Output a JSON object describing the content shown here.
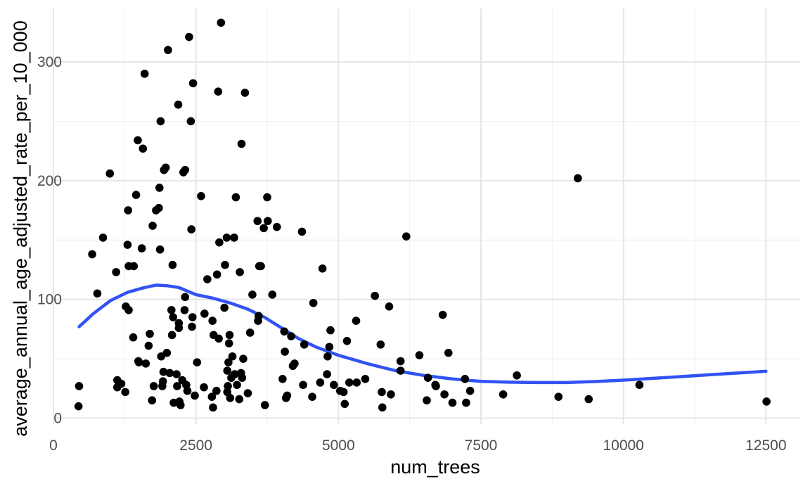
{
  "chart_data": {
    "type": "scatter",
    "title": "",
    "xlabel": "num_trees",
    "ylabel": "average_annual_age_adjusted_rate_per_10_000",
    "xlim": [
      0,
      13100
    ],
    "ylim": [
      -5,
      345
    ],
    "x_ticks": [
      0,
      2500,
      5000,
      7500,
      10000,
      12500
    ],
    "x_tick_labels": [
      "0",
      "2500",
      "5000",
      "7500",
      "10000",
      "12500"
    ],
    "y_ticks": [
      0,
      100,
      200,
      300
    ],
    "y_tick_labels": [
      "0",
      "100",
      "200",
      "300"
    ],
    "grid": true,
    "legend": "none",
    "point_color": "#000000",
    "smooth_color": "#3153f4",
    "points": [
      [
        450,
        27
      ],
      [
        440,
        10
      ],
      [
        680,
        138
      ],
      [
        770,
        105
      ],
      [
        870,
        152
      ],
      [
        990,
        206
      ],
      [
        1100,
        123
      ],
      [
        1120,
        32
      ],
      [
        1120,
        26
      ],
      [
        1190,
        29
      ],
      [
        1260,
        22
      ],
      [
        1270,
        94
      ],
      [
        1300,
        146
      ],
      [
        1310,
        175
      ],
      [
        1320,
        91
      ],
      [
        1320,
        128
      ],
      [
        1400,
        68
      ],
      [
        1410,
        128
      ],
      [
        1450,
        188
      ],
      [
        1480,
        234
      ],
      [
        1490,
        48
      ],
      [
        1500,
        47
      ],
      [
        1550,
        143
      ],
      [
        1570,
        227
      ],
      [
        1600,
        290
      ],
      [
        1620,
        46
      ],
      [
        1670,
        61
      ],
      [
        1690,
        71
      ],
      [
        1730,
        15
      ],
      [
        1740,
        162
      ],
      [
        1760,
        27
      ],
      [
        1800,
        175
      ],
      [
        1850,
        177
      ],
      [
        1860,
        194
      ],
      [
        1870,
        142
      ],
      [
        1880,
        250
      ],
      [
        1890,
        52
      ],
      [
        1910,
        27
      ],
      [
        1920,
        31
      ],
      [
        1930,
        39
      ],
      [
        1940,
        209
      ],
      [
        1970,
        211
      ],
      [
        1990,
        55
      ],
      [
        2010,
        310
      ],
      [
        2040,
        38
      ],
      [
        2070,
        91
      ],
      [
        2080,
        70
      ],
      [
        2090,
        129
      ],
      [
        2100,
        85
      ],
      [
        2110,
        13
      ],
      [
        2160,
        37
      ],
      [
        2170,
        27
      ],
      [
        2190,
        264
      ],
      [
        2200,
        80
      ],
      [
        2200,
        76
      ],
      [
        2210,
        14
      ],
      [
        2230,
        11
      ],
      [
        2260,
        32
      ],
      [
        2280,
        207
      ],
      [
        2300,
        91
      ],
      [
        2310,
        209
      ],
      [
        2310,
        102
      ],
      [
        2330,
        28
      ],
      [
        2350,
        23
      ],
      [
        2380,
        321
      ],
      [
        2410,
        250
      ],
      [
        2420,
        159
      ],
      [
        2430,
        77
      ],
      [
        2440,
        85
      ],
      [
        2450,
        282
      ],
      [
        2480,
        19
      ],
      [
        2520,
        47
      ],
      [
        2590,
        187
      ],
      [
        2640,
        26
      ],
      [
        2650,
        88
      ],
      [
        2700,
        117
      ],
      [
        2780,
        18
      ],
      [
        2790,
        82
      ],
      [
        2800,
        9
      ],
      [
        2810,
        70
      ],
      [
        2860,
        23
      ],
      [
        2870,
        121
      ],
      [
        2890,
        275
      ],
      [
        2900,
        67
      ],
      [
        2910,
        148
      ],
      [
        2940,
        333
      ],
      [
        3000,
        93
      ],
      [
        3010,
        129
      ],
      [
        3040,
        152
      ],
      [
        3050,
        22
      ],
      [
        3050,
        40
      ],
      [
        3060,
        27
      ],
      [
        3070,
        47
      ],
      [
        3080,
        63
      ],
      [
        3090,
        70
      ],
      [
        3100,
        17
      ],
      [
        3120,
        34
      ],
      [
        3140,
        52
      ],
      [
        3170,
        152
      ],
      [
        3180,
        37
      ],
      [
        3200,
        186
      ],
      [
        3220,
        28
      ],
      [
        3260,
        16
      ],
      [
        3270,
        123
      ],
      [
        3290,
        38
      ],
      [
        3300,
        231
      ],
      [
        3310,
        34
      ],
      [
        3330,
        50
      ],
      [
        3360,
        274
      ],
      [
        3410,
        21
      ],
      [
        3450,
        72
      ],
      [
        3490,
        104
      ],
      [
        3580,
        166
      ],
      [
        3590,
        82
      ],
      [
        3600,
        86
      ],
      [
        3610,
        128
      ],
      [
        3640,
        128
      ],
      [
        3690,
        160
      ],
      [
        3710,
        11
      ],
      [
        3750,
        186
      ],
      [
        3760,
        166
      ],
      [
        3840,
        104
      ],
      [
        3920,
        161
      ],
      [
        4020,
        33
      ],
      [
        4050,
        73
      ],
      [
        4060,
        56
      ],
      [
        4080,
        17
      ],
      [
        4100,
        19
      ],
      [
        4170,
        69
      ],
      [
        4200,
        44
      ],
      [
        4230,
        46
      ],
      [
        4360,
        157
      ],
      [
        4380,
        28
      ],
      [
        4400,
        62
      ],
      [
        4540,
        18
      ],
      [
        4560,
        97
      ],
      [
        4680,
        30
      ],
      [
        4720,
        126
      ],
      [
        4800,
        37
      ],
      [
        4810,
        52
      ],
      [
        4840,
        60
      ],
      [
        4860,
        74
      ],
      [
        4920,
        28
      ],
      [
        5030,
        23
      ],
      [
        5090,
        22
      ],
      [
        5110,
        12
      ],
      [
        5150,
        65
      ],
      [
        5190,
        30
      ],
      [
        5310,
        82
      ],
      [
        5320,
        30
      ],
      [
        5470,
        33
      ],
      [
        5640,
        103
      ],
      [
        5740,
        62
      ],
      [
        5760,
        22
      ],
      [
        5770,
        9
      ],
      [
        5890,
        94
      ],
      [
        5920,
        20
      ],
      [
        6090,
        48
      ],
      [
        6090,
        40
      ],
      [
        6190,
        153
      ],
      [
        6420,
        53
      ],
      [
        6550,
        15
      ],
      [
        6570,
        34
      ],
      [
        6700,
        28
      ],
      [
        6710,
        27
      ],
      [
        6830,
        87
      ],
      [
        6860,
        20
      ],
      [
        6930,
        55
      ],
      [
        7000,
        13
      ],
      [
        7220,
        33
      ],
      [
        7240,
        13
      ],
      [
        7310,
        23
      ],
      [
        7890,
        20
      ],
      [
        8130,
        36
      ],
      [
        8860,
        18
      ],
      [
        9200,
        202
      ],
      [
        9390,
        16
      ],
      [
        10280,
        28
      ],
      [
        12510,
        14
      ]
    ],
    "smooth_line": [
      [
        450,
        77
      ],
      [
        700,
        88
      ],
      [
        1000,
        99
      ],
      [
        1300,
        106
      ],
      [
        1600,
        110
      ],
      [
        1800,
        112
      ],
      [
        2000,
        111.5
      ],
      [
        2200,
        110
      ],
      [
        2500,
        104
      ],
      [
        2800,
        101
      ],
      [
        3100,
        97
      ],
      [
        3400,
        92
      ],
      [
        3700,
        85
      ],
      [
        4000,
        76
      ],
      [
        4300,
        67
      ],
      [
        4600,
        60
      ],
      [
        5000,
        53
      ],
      [
        5500,
        46
      ],
      [
        6000,
        40
      ],
      [
        6500,
        36
      ],
      [
        7000,
        33
      ],
      [
        7500,
        31
      ],
      [
        8000,
        30.3
      ],
      [
        8500,
        30
      ],
      [
        9000,
        30
      ],
      [
        9500,
        30.8
      ],
      [
        10000,
        32
      ],
      [
        10500,
        33.5
      ],
      [
        11000,
        35
      ],
      [
        11500,
        36.5
      ],
      [
        12000,
        38
      ],
      [
        12500,
        39.5
      ]
    ]
  }
}
